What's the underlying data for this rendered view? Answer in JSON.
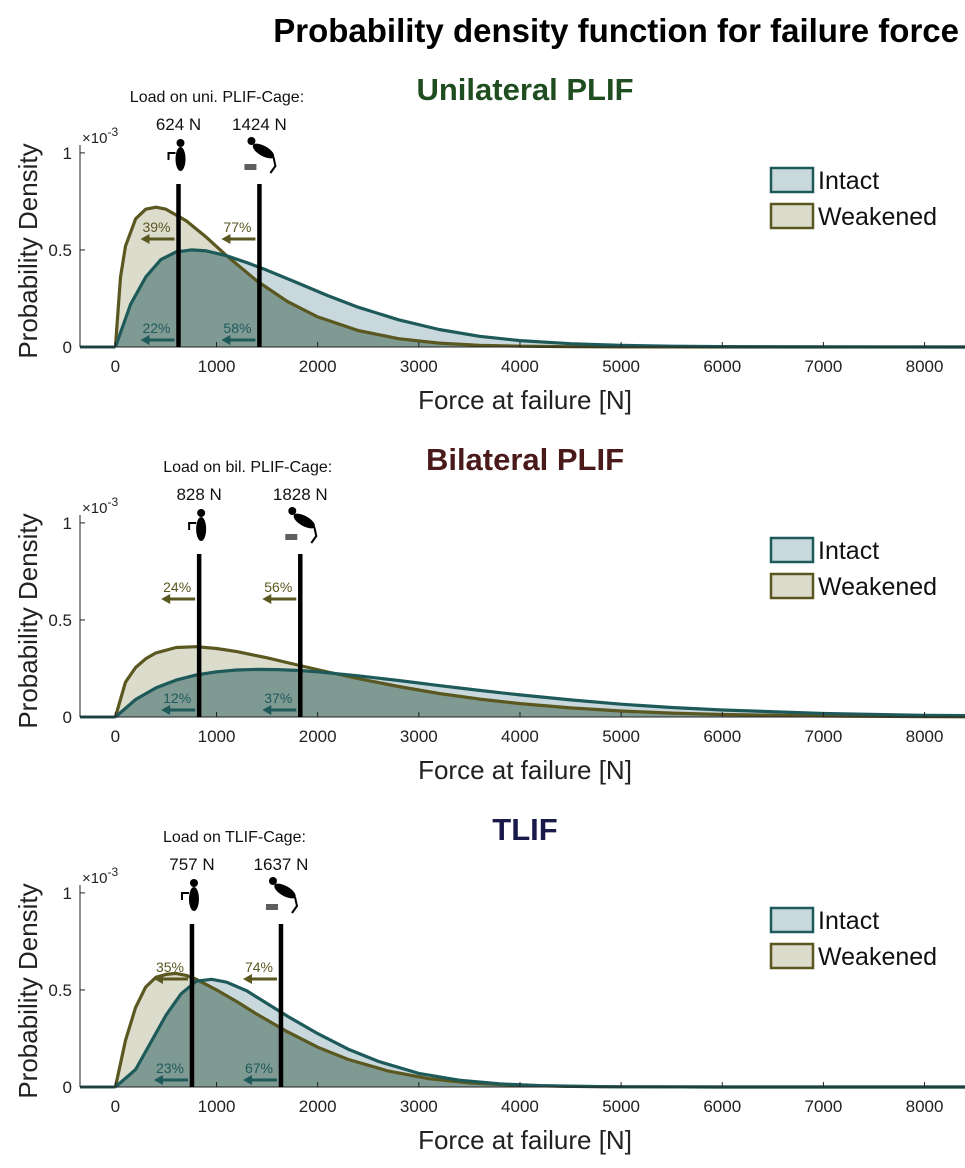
{
  "figure": {
    "title": "Probability density function for failure force",
    "legend": {
      "intact": "Intact",
      "weakened": "Weakened"
    },
    "colors": {
      "intact_line": "#1e5a5a",
      "intact_fill": "#c9d8dc",
      "weakened_line": "#5a5720",
      "weakened_fill": "#dcdccd",
      "overlap_fill": "#7f9a92",
      "uni_title": "#1f4d1f",
      "bil_title": "#4a1a1a",
      "tlif_title": "#1a1a4a",
      "marker_box": "#5e5e5e"
    },
    "icons": [
      "standing-person-icon",
      "lifting-person-icon"
    ]
  },
  "chart_data": [
    {
      "type": "area",
      "title": "Unilateral PLIF",
      "xlabel": "Force at failure [N]",
      "ylabel": "Probability Density",
      "y_exponent_label": "×10",
      "y_exponent_power": "-3",
      "xlim": [
        -350,
        8400
      ],
      "ylim": [
        0,
        0.00102
      ],
      "xticks": [
        0,
        1000,
        2000,
        3000,
        4000,
        5000,
        6000,
        7000,
        8000
      ],
      "xtick_labels": [
        "0",
        "1000",
        "2000",
        "3000",
        "4000",
        "5000",
        "6000",
        "7000",
        "8000"
      ],
      "yticks": [
        0,
        0.0005,
        0.001
      ],
      "ytick_labels": [
        "0",
        "0.5",
        "1"
      ],
      "legend_position": "right",
      "series": [
        {
          "name": "Intact",
          "x": [
            0,
            150,
            300,
            450,
            600,
            750,
            900,
            1100,
            1300,
            1500,
            1800,
            2100,
            2400,
            2800,
            3200,
            3600,
            4000,
            4500,
            5000,
            5500,
            6000,
            7000,
            8400
          ],
          "values": [
            0,
            0.00022,
            0.00036,
            0.00045,
            0.00049,
            0.0005,
            0.000495,
            0.00047,
            0.000435,
            0.000395,
            0.00033,
            0.000265,
            0.000205,
            0.00014,
            9e-05,
            5.5e-05,
            3.3e-05,
            1.7e-05,
            8e-06,
            4e-06,
            2e-06,
            5e-07,
            0
          ]
        },
        {
          "name": "Weakened",
          "x": [
            0,
            50,
            100,
            200,
            300,
            400,
            500,
            700,
            900,
            1100,
            1400,
            1700,
            2000,
            2400,
            2800,
            3200,
            3600,
            4000,
            4500,
            5000,
            6000,
            8400
          ],
          "values": [
            0,
            0.00036,
            0.00052,
            0.00066,
            0.00071,
            0.00072,
            0.00071,
            0.00065,
            0.000565,
            0.00047,
            0.00034,
            0.000235,
            0.000155,
            8.5e-05,
            4.3e-05,
            2e-05,
            9e-06,
            4e-06,
            1.5e-06,
            5e-07,
            1e-07,
            0
          ]
        }
      ],
      "load_header": "Load on uni. PLIF-Cage:",
      "markers": [
        {
          "force": 624,
          "label": "624 N",
          "icon": "standing-person-icon",
          "weakened_pct": "39%",
          "intact_pct": "22%"
        },
        {
          "force": 1424,
          "label": "1424 N",
          "icon": "lifting-person-icon",
          "weakened_pct": "77%",
          "intact_pct": "58%"
        }
      ]
    },
    {
      "type": "area",
      "title": "Bilateral PLIF",
      "xlabel": "Force at failure [N]",
      "ylabel": "Probability Density",
      "y_exponent_label": "×10",
      "y_exponent_power": "-3",
      "xlim": [
        -350,
        8400
      ],
      "ylim": [
        0,
        0.00102
      ],
      "xticks": [
        0,
        1000,
        2000,
        3000,
        4000,
        5000,
        6000,
        7000,
        8000
      ],
      "xtick_labels": [
        "0",
        "1000",
        "2000",
        "3000",
        "4000",
        "5000",
        "6000",
        "7000",
        "8000"
      ],
      "yticks": [
        0,
        0.0005,
        0.001
      ],
      "ytick_labels": [
        "0",
        "0.5",
        "1"
      ],
      "legend_position": "right",
      "series": [
        {
          "name": "Intact",
          "x": [
            0,
            200,
            400,
            600,
            800,
            1000,
            1200,
            1400,
            1600,
            1800,
            2000,
            2400,
            2800,
            3200,
            3600,
            4000,
            4500,
            5000,
            5500,
            6000,
            7000,
            8000,
            8400
          ],
          "values": [
            0,
            9e-05,
            0.00015,
            0.00019,
            0.000217,
            0.000233,
            0.000242,
            0.000245,
            0.000244,
            0.00024,
            0.000233,
            0.000212,
            0.000188,
            0.000162,
            0.000137,
            0.000114,
            8.8e-05,
            6.6e-05,
            4.9e-05,
            3.6e-05,
            1.8e-05,
            9e-06,
            7e-06
          ]
        },
        {
          "name": "Weakened",
          "x": [
            0,
            100,
            200,
            300,
            400,
            600,
            800,
            1000,
            1200,
            1500,
            1800,
            2100,
            2400,
            2800,
            3200,
            3600,
            4000,
            4500,
            5000,
            5500,
            6000,
            7000,
            8000,
            8400
          ],
          "values": [
            0,
            0.00018,
            0.000255,
            0.0003,
            0.00033,
            0.000358,
            0.000362,
            0.000353,
            0.000337,
            0.000305,
            0.000268,
            0.000232,
            0.000198,
            0.000157,
            0.000121,
            9.2e-05,
            6.9e-05,
            4.7e-05,
            3.1e-05,
            2e-05,
            1.3e-05,
            5e-06,
            2e-06,
            1e-06
          ]
        }
      ],
      "load_header": "Load on bil. PLIF-Cage:",
      "markers": [
        {
          "force": 828,
          "label": "828 N",
          "icon": "standing-person-icon",
          "weakened_pct": "24%",
          "intact_pct": "12%"
        },
        {
          "force": 1828,
          "label": "1828 N",
          "icon": "lifting-person-icon",
          "weakened_pct": "56%",
          "intact_pct": "37%"
        }
      ]
    },
    {
      "type": "area",
      "title": "TLIF",
      "xlabel": "Force at failure [N]",
      "ylabel": "Probability Density",
      "y_exponent_label": "×10",
      "y_exponent_power": "-3",
      "xlim": [
        -350,
        8400
      ],
      "ylim": [
        0,
        0.00102
      ],
      "xticks": [
        0,
        1000,
        2000,
        3000,
        4000,
        5000,
        6000,
        7000,
        8000
      ],
      "xtick_labels": [
        "0",
        "1000",
        "2000",
        "3000",
        "4000",
        "5000",
        "6000",
        "7000",
        "8000"
      ],
      "yticks": [
        0,
        0.0005,
        0.001
      ],
      "ytick_labels": [
        "0",
        "0.5",
        "1"
      ],
      "legend_position": "right",
      "series": [
        {
          "name": "Intact",
          "x": [
            0,
            200,
            350,
            500,
            650,
            800,
            950,
            1100,
            1300,
            1500,
            1700,
            2000,
            2300,
            2600,
            3000,
            3400,
            3800,
            4200,
            4600,
            5000,
            6000,
            8400
          ],
          "values": [
            0,
            9e-05,
            0.00023,
            0.00037,
            0.00048,
            0.000545,
            0.000555,
            0.00054,
            0.000495,
            0.00043,
            0.000365,
            0.000275,
            0.000195,
            0.000132,
            7e-05,
            3.5e-05,
            1.6e-05,
            7e-06,
            3e-06,
            1.2e-06,
            2e-07,
            0
          ]
        },
        {
          "name": "Weakened",
          "x": [
            0,
            100,
            200,
            300,
            400,
            500,
            600,
            700,
            800,
            1000,
            1200,
            1400,
            1700,
            2000,
            2300,
            2700,
            3100,
            3500,
            4000,
            4500,
            5000,
            6000,
            8400
          ],
          "values": [
            0,
            0.00024,
            0.00041,
            0.000515,
            0.000565,
            0.00058,
            0.000585,
            0.000575,
            0.000555,
            0.0005,
            0.00044,
            0.000375,
            0.000285,
            0.000205,
            0.000142,
            8.2e-05,
            4.3e-05,
            2.1e-05,
            8e-06,
            3e-06,
            1e-06,
            1e-07,
            0
          ]
        }
      ],
      "load_header": "Load on TLIF-Cage:",
      "markers": [
        {
          "force": 757,
          "label": "757 N",
          "icon": "standing-person-icon",
          "weakened_pct": "35%",
          "intact_pct": "23%"
        },
        {
          "force": 1637,
          "label": "1637 N",
          "icon": "lifting-person-icon",
          "weakened_pct": "74%",
          "intact_pct": "67%"
        }
      ]
    }
  ]
}
